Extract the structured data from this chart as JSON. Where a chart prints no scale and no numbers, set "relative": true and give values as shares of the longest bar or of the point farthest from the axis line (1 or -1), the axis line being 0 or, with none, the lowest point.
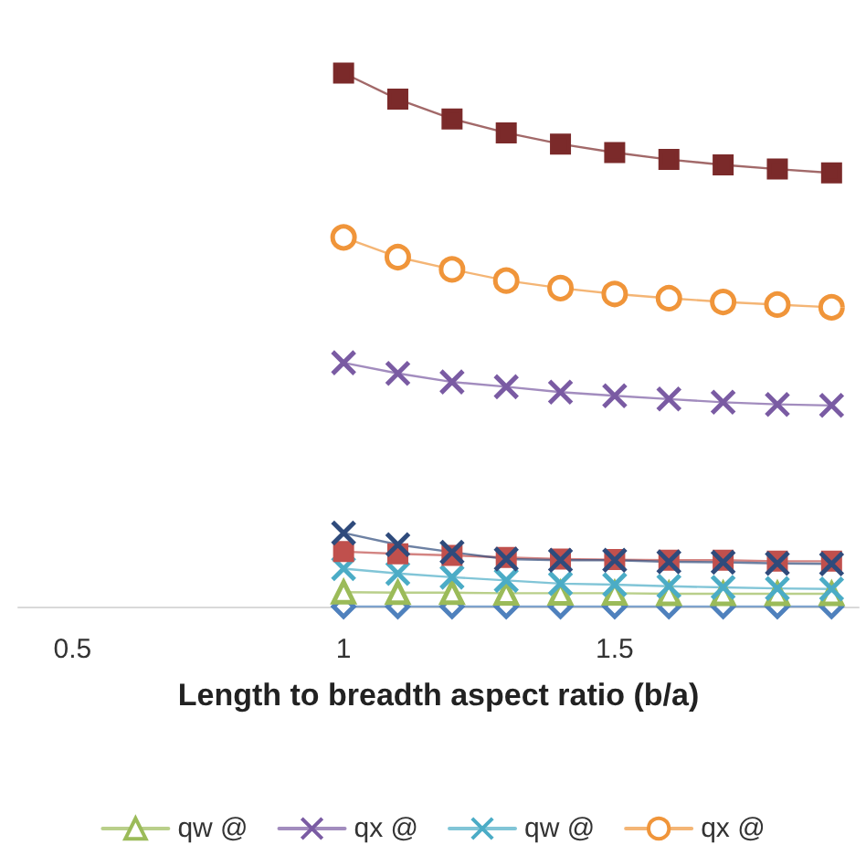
{
  "chart_data": {
    "type": "line",
    "relative": true,
    "xlabel": "Length to breadth aspect ratio (b/a)",
    "x": [
      1,
      1.1,
      1.2,
      1.3,
      1.4,
      1.5,
      1.6,
      1.7,
      1.8,
      1.9
    ],
    "xlim": [
      0.4,
      1.95
    ],
    "xticks": [
      0.5,
      1,
      1.5
    ],
    "grid": false,
    "legend": "bottom",
    "line_style": "solid",
    "series": [
      {
        "color": "#4f81bd",
        "marker": "diamond",
        "values": [
          0,
          0,
          0,
          0,
          0,
          0,
          0,
          0,
          0,
          0
        ]
      },
      {
        "name": "qw @",
        "color": "#9bbb59",
        "marker": "triangle",
        "values": [
          0.027,
          0.026,
          0.026,
          0.025,
          0.025,
          0.025,
          0.024,
          0.024,
          0.024,
          0.024
        ]
      },
      {
        "name": "qx @",
        "color": "#7a5ba3",
        "marker": "cross",
        "values": [
          0.457,
          0.437,
          0.421,
          0.412,
          0.402,
          0.395,
          0.389,
          0.383,
          0.379,
          0.377
        ]
      },
      {
        "name": "qw @",
        "color": "#4bacc6",
        "marker": "cross",
        "values": [
          0.071,
          0.062,
          0.055,
          0.049,
          0.043,
          0.041,
          0.038,
          0.036,
          0.034,
          0.033
        ]
      },
      {
        "name": "qx @",
        "color": "#f0953a",
        "marker": "circle",
        "values": [
          0.692,
          0.655,
          0.632,
          0.611,
          0.597,
          0.586,
          0.578,
          0.571,
          0.566,
          0.561
        ]
      },
      {
        "color": "#c0504d",
        "marker": "square",
        "values": [
          0.103,
          0.099,
          0.096,
          0.092,
          0.089,
          0.088,
          0.087,
          0.087,
          0.085,
          0.085
        ]
      },
      {
        "color": "#2f4b7c",
        "marker": "cross",
        "values": [
          0.138,
          0.116,
          0.102,
          0.089,
          0.087,
          0.087,
          0.084,
          0.083,
          0.081,
          0.08
        ]
      },
      {
        "color": "#7b2a2a",
        "marker": "square",
        "values": [
          1,
          0.951,
          0.914,
          0.888,
          0.867,
          0.851,
          0.838,
          0.828,
          0.82,
          0.813
        ]
      }
    ]
  }
}
